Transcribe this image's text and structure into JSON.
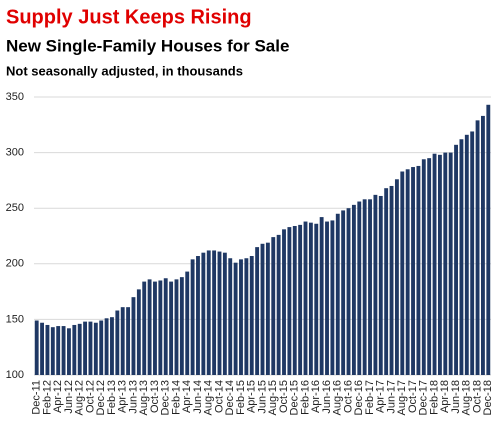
{
  "chart_data": {
    "type": "bar",
    "title": "Supply Just Keeps Rising",
    "subtitle": "New Single-Family  Houses for Sale",
    "note": "Not seasonally adjusted, in thousands",
    "categories": [
      "Dec-11",
      null,
      "Feb-12",
      null,
      "Apr-12",
      null,
      "Jun-12",
      null,
      "Aug-12",
      null,
      "Oct-12",
      null,
      "Dec-12",
      null,
      "Feb-13",
      null,
      "Apr-13",
      null,
      "Jun-13",
      null,
      "Aug-13",
      null,
      "Oct-13",
      null,
      "Dec-13",
      null,
      "Feb-14",
      null,
      "Apr-14",
      null,
      "Jun-14",
      null,
      "Aug-14",
      null,
      "Oct-14",
      null,
      "Dec-14",
      null,
      "Feb-15",
      null,
      "Apr-15",
      null,
      "Jun-15",
      null,
      "Aug-15",
      null,
      "Oct-15",
      null,
      "Dec-15",
      null,
      "Feb-16",
      null,
      "Apr-16",
      null,
      "Jun-16",
      null,
      "Aug-16",
      null,
      "Oct-16",
      null,
      "Dec-16",
      null,
      "Feb-17",
      null,
      "Apr-17",
      null,
      "Jun-17",
      null,
      "Aug-17",
      null,
      "Oct-17",
      null,
      "Dec-17",
      null,
      "Feb-18",
      null,
      "Apr-18",
      null,
      "Jun-18",
      null,
      "Aug-18",
      null,
      "Oct-18",
      null,
      "Dec-18"
    ],
    "values": [
      149,
      147,
      145,
      143,
      144,
      144,
      142,
      145,
      146,
      148,
      148,
      147,
      149,
      151,
      152,
      158,
      161,
      161,
      170,
      177,
      184,
      186,
      184,
      185,
      187,
      184,
      186,
      188,
      193,
      204,
      207,
      210,
      212,
      212,
      211,
      210,
      205,
      201,
      204,
      205,
      207,
      215,
      218,
      219,
      224,
      226,
      231,
      233,
      234,
      235,
      238,
      237,
      236,
      242,
      238,
      239,
      245,
      248,
      250,
      253,
      256,
      258,
      258,
      262,
      261,
      268,
      270,
      276,
      283,
      285,
      287,
      288,
      294,
      295,
      299,
      298,
      300,
      300,
      307,
      312,
      316,
      319,
      329,
      333,
      343
    ],
    "color": "#1f3864",
    "ylim": [
      100,
      350
    ],
    "yticks": [
      100,
      150,
      200,
      250,
      300,
      350
    ],
    "grid": true
  }
}
